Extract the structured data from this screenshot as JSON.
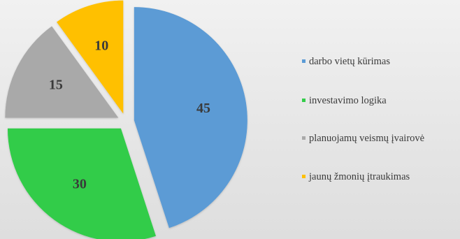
{
  "chart_data": {
    "type": "pie",
    "slices": [
      {
        "label": "darbo vietų kūrimas",
        "value": 45,
        "color": "#5b9bd5"
      },
      {
        "label": "investavimo logika",
        "value": 30,
        "color": "#33cc4a"
      },
      {
        "label": "planuojamų veismų įvairovė",
        "value": 15,
        "color": "#a9a9a9"
      },
      {
        "label": "jaunų žmonių įtraukimas",
        "value": 10,
        "color": "#ffc000"
      }
    ],
    "legend_position": "right",
    "exploded": true
  }
}
